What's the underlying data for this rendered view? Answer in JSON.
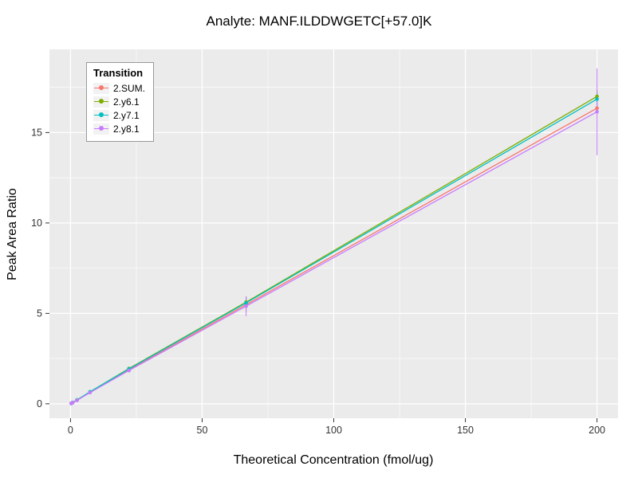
{
  "title": "Analyte: MANF.ILDDWGETC[+57.0]K",
  "chart_data": {
    "type": "line",
    "title": "Analyte: MANF.ILDDWGETC[+57.0]K",
    "xlabel": "Theoretical Concentration (fmol/ug)",
    "ylabel": "Peak Area Ratio",
    "legend_title": "Transition",
    "legend_position": "top-left-inside",
    "panel_bg": "#EBEBEB",
    "grid_color": "#FFFFFF",
    "xlim": [
      -8,
      208
    ],
    "ylim": [
      -0.8,
      19.6
    ],
    "x_major_ticks": [
      0,
      50,
      100,
      150,
      200
    ],
    "x_minor_ticks": [
      25,
      75,
      125,
      175
    ],
    "y_major_ticks": [
      0,
      5,
      10,
      15
    ],
    "y_minor_ticks": [
      2.5,
      7.5,
      12.5,
      17.5
    ],
    "x": [
      0.27,
      0.82,
      2.47,
      7.41,
      22.2,
      66.7,
      200
    ],
    "series": [
      {
        "name": "2.SUM.",
        "color": "#F8766D",
        "values": [
          0.02,
          0.07,
          0.2,
          0.64,
          1.88,
          5.48,
          16.35
        ],
        "errors": [
          0,
          0,
          0,
          0,
          0,
          0.4,
          0.3
        ]
      },
      {
        "name": "2.y6.1",
        "color": "#7CAE00",
        "values": [
          0.02,
          0.07,
          0.21,
          0.66,
          1.95,
          5.62,
          17.0
        ],
        "errors": [
          0,
          0,
          0,
          0,
          0,
          0.3,
          0.35
        ]
      },
      {
        "name": "2.y7.1",
        "color": "#00BFC4",
        "values": [
          0.02,
          0.07,
          0.21,
          0.66,
          1.93,
          5.58,
          16.85
        ],
        "errors": [
          0,
          0,
          0,
          0,
          0,
          0.3,
          0.35
        ]
      },
      {
        "name": "2.y8.1",
        "color": "#C77CFF",
        "values": [
          0.02,
          0.06,
          0.19,
          0.62,
          1.84,
          5.4,
          16.15
        ],
        "errors": [
          0,
          0,
          0,
          0,
          0,
          0.55,
          2.4
        ]
      }
    ]
  }
}
